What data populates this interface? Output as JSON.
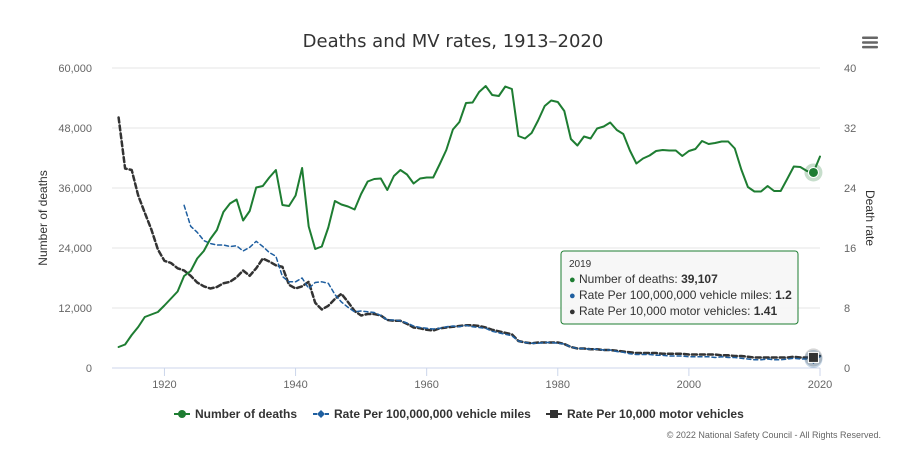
{
  "menu": {
    "icon": "hamburger-menu-icon"
  },
  "credits": "© 2022 National Safety Council - All Rights Reserved.",
  "tooltip": {
    "year": "2019",
    "rows": [
      {
        "label": "Number of deaths: ",
        "value": "39,107",
        "color": "#1e7d32"
      },
      {
        "label": "Rate Per 100,000,000 vehicle miles: ",
        "value": "1.2",
        "color": "#1f5fa0"
      },
      {
        "label": "Rate Per 10,000 motor vehicles: ",
        "value": "1.41",
        "color": "#333333"
      }
    ]
  },
  "chart_data": {
    "type": "line",
    "title": "Deaths and MV rates, 1913–2020",
    "x": {
      "range": [
        1912,
        2020
      ],
      "ticks": [
        1920,
        1940,
        1960,
        1980,
        2000,
        2020
      ],
      "tick_labels": [
        "1920",
        "1940",
        "1960",
        "1980",
        "2000",
        "2020"
      ]
    },
    "y_left": {
      "label": "Number of deaths",
      "range": [
        0,
        60000
      ],
      "ticks": [
        0,
        12000,
        24000,
        36000,
        48000,
        60000
      ],
      "tick_labels": [
        "0",
        "12,000",
        "24,000",
        "36,000",
        "48,000",
        "60,000"
      ]
    },
    "y_right": {
      "label": "Death rate",
      "range": [
        0,
        40
      ],
      "ticks": [
        0,
        8,
        16,
        24,
        32,
        40
      ],
      "tick_labels": [
        "0",
        "8",
        "16",
        "24",
        "32",
        "40"
      ]
    },
    "grid": true,
    "legend_position": "bottom",
    "series": [
      {
        "name": "Number of deaths",
        "axis": "left",
        "color": "#1e7d32",
        "style": "solid",
        "marker": "circle",
        "x": [
          1913,
          1914,
          1915,
          1916,
          1917,
          1918,
          1919,
          1920,
          1921,
          1922,
          1923,
          1924,
          1925,
          1926,
          1927,
          1928,
          1929,
          1930,
          1931,
          1932,
          1933,
          1934,
          1935,
          1936,
          1937,
          1938,
          1939,
          1940,
          1941,
          1942,
          1943,
          1944,
          1945,
          1946,
          1947,
          1948,
          1949,
          1950,
          1951,
          1952,
          1953,
          1954,
          1955,
          1956,
          1957,
          1958,
          1959,
          1960,
          1961,
          1962,
          1963,
          1964,
          1965,
          1966,
          1967,
          1968,
          1969,
          1970,
          1971,
          1972,
          1973,
          1974,
          1975,
          1976,
          1977,
          1978,
          1979,
          1980,
          1981,
          1982,
          1983,
          1984,
          1985,
          1986,
          1987,
          1988,
          1989,
          1990,
          1991,
          1992,
          1993,
          1994,
          1995,
          1996,
          1997,
          1998,
          1999,
          2000,
          2001,
          2002,
          2003,
          2004,
          2005,
          2006,
          2007,
          2008,
          2009,
          2010,
          2011,
          2012,
          2013,
          2014,
          2015,
          2016,
          2017,
          2018,
          2019,
          2020
        ],
        "y": [
          4200,
          4700,
          6600,
          8200,
          10200,
          10700,
          11200,
          12500,
          13900,
          15300,
          18400,
          19400,
          21900,
          23400,
          25800,
          27600,
          31200,
          32900,
          33700,
          29500,
          31400,
          36100,
          36400,
          38100,
          39600,
          32600,
          32400,
          34500,
          40000,
          28300,
          23800,
          24300,
          28100,
          33400,
          32700,
          32300,
          31700,
          34800,
          37300,
          37800,
          37900,
          35600,
          38400,
          39600,
          38700,
          36900,
          37900,
          38100,
          38100,
          40800,
          43600,
          47700,
          49200,
          53000,
          53100,
          55200,
          56400,
          54600,
          54400,
          56300,
          55800,
          46400,
          45900,
          47000,
          49500,
          52400,
          53500,
          53200,
          51400,
          45800,
          44500,
          46300,
          45900,
          47900,
          48300,
          49100,
          47600,
          46800,
          43500,
          40900,
          41900,
          42500,
          43400,
          43600,
          43500,
          43500,
          42400,
          43400,
          43800,
          45400,
          44800,
          45000,
          45300,
          45300,
          43900,
          39700,
          36200,
          35300,
          35300,
          36400,
          35400,
          35400,
          37800,
          40300,
          40200,
          39400,
          39107,
          42300
        ]
      },
      {
        "name": "Rate Per 100,000,000 vehicle miles",
        "axis": "right",
        "color": "#1f5fa0",
        "style": "dashed",
        "marker": "diamond",
        "x": [
          1923,
          1924,
          1925,
          1926,
          1927,
          1928,
          1929,
          1930,
          1931,
          1932,
          1933,
          1934,
          1935,
          1936,
          1937,
          1938,
          1939,
          1940,
          1941,
          1942,
          1943,
          1944,
          1945,
          1946,
          1947,
          1948,
          1949,
          1950,
          1951,
          1952,
          1953,
          1954,
          1955,
          1956,
          1957,
          1958,
          1959,
          1960,
          1961,
          1962,
          1963,
          1964,
          1965,
          1966,
          1967,
          1968,
          1969,
          1970,
          1971,
          1972,
          1973,
          1974,
          1975,
          1976,
          1977,
          1978,
          1979,
          1980,
          1981,
          1982,
          1983,
          1984,
          1985,
          1986,
          1987,
          1988,
          1989,
          1990,
          1991,
          1992,
          1993,
          1994,
          1995,
          1996,
          1997,
          1998,
          1999,
          2000,
          2001,
          2002,
          2003,
          2004,
          2005,
          2006,
          2007,
          2008,
          2009,
          2010,
          2011,
          2012,
          2013,
          2014,
          2015,
          2016,
          2017,
          2018,
          2019,
          2020
        ],
        "y": [
          21.7,
          18.9,
          18.1,
          17.0,
          16.6,
          16.4,
          16.4,
          16.2,
          16.3,
          15.6,
          16.1,
          16.9,
          16.2,
          15.4,
          14.9,
          12.2,
          11.5,
          11.5,
          12.0,
          10.6,
          11.4,
          11.5,
          11.3,
          9.8,
          8.8,
          8.1,
          7.5,
          7.6,
          7.5,
          7.4,
          7.0,
          6.4,
          6.4,
          6.3,
          6.0,
          5.6,
          5.4,
          5.3,
          5.2,
          5.3,
          5.5,
          5.6,
          5.5,
          5.7,
          5.5,
          5.4,
          5.3,
          4.9,
          4.7,
          4.5,
          4.3,
          3.6,
          3.4,
          3.3,
          3.3,
          3.4,
          3.4,
          3.3,
          3.2,
          2.8,
          2.6,
          2.6,
          2.5,
          2.5,
          2.4,
          2.4,
          2.2,
          2.1,
          1.9,
          1.8,
          1.8,
          1.8,
          1.7,
          1.7,
          1.6,
          1.6,
          1.6,
          1.5,
          1.5,
          1.5,
          1.5,
          1.4,
          1.5,
          1.4,
          1.4,
          1.3,
          1.2,
          1.1,
          1.1,
          1.2,
          1.1,
          1.1,
          1.2,
          1.3,
          1.2,
          1.2,
          1.2,
          1.5
        ]
      },
      {
        "name": "Rate Per 10,000 motor vehicles",
        "axis": "right",
        "color": "#333333",
        "style": "dashed",
        "marker": "square",
        "x": [
          1913,
          1914,
          1915,
          1916,
          1917,
          1918,
          1919,
          1920,
          1921,
          1922,
          1923,
          1924,
          1925,
          1926,
          1927,
          1928,
          1929,
          1930,
          1931,
          1932,
          1933,
          1934,
          1935,
          1936,
          1937,
          1938,
          1939,
          1940,
          1941,
          1942,
          1943,
          1944,
          1945,
          1946,
          1947,
          1948,
          1949,
          1950,
          1951,
          1952,
          1953,
          1954,
          1955,
          1956,
          1957,
          1958,
          1959,
          1960,
          1961,
          1962,
          1963,
          1964,
          1965,
          1966,
          1967,
          1968,
          1969,
          1970,
          1971,
          1972,
          1973,
          1974,
          1975,
          1976,
          1977,
          1978,
          1979,
          1980,
          1981,
          1982,
          1983,
          1984,
          1985,
          1986,
          1987,
          1988,
          1989,
          1990,
          1991,
          1992,
          1993,
          1994,
          1995,
          1996,
          1997,
          1998,
          1999,
          2000,
          2001,
          2002,
          2003,
          2004,
          2005,
          2006,
          2007,
          2008,
          2009,
          2010,
          2011,
          2012,
          2013,
          2014,
          2015,
          2016,
          2017,
          2018,
          2019,
          2020
        ],
        "y": [
          33.4,
          26.6,
          26.4,
          23.0,
          20.7,
          18.5,
          15.8,
          14.3,
          14.0,
          13.3,
          13.0,
          12.3,
          11.4,
          10.9,
          10.6,
          10.8,
          11.3,
          11.5,
          12.1,
          13.0,
          12.3,
          13.3,
          14.6,
          14.2,
          13.7,
          13.5,
          11.1,
          10.6,
          10.9,
          11.5,
          8.7,
          7.8,
          8.3,
          9.2,
          9.9,
          8.8,
          7.6,
          7.0,
          7.2,
          7.2,
          7.0,
          6.4,
          6.3,
          6.3,
          5.9,
          5.4,
          5.3,
          5.1,
          5.0,
          5.3,
          5.4,
          5.5,
          5.6,
          5.7,
          5.7,
          5.6,
          5.4,
          5.1,
          4.9,
          4.7,
          4.5,
          3.6,
          3.4,
          3.3,
          3.4,
          3.4,
          3.4,
          3.4,
          3.2,
          2.8,
          2.6,
          2.6,
          2.5,
          2.5,
          2.4,
          2.4,
          2.3,
          2.2,
          2.1,
          2.0,
          2.0,
          2.0,
          2.0,
          1.9,
          1.9,
          1.9,
          1.9,
          1.8,
          1.8,
          1.8,
          1.8,
          1.8,
          1.7,
          1.7,
          1.6,
          1.6,
          1.5,
          1.4,
          1.4,
          1.4,
          1.4,
          1.4,
          1.4,
          1.5,
          1.4,
          1.4,
          1.41,
          1.6
        ]
      }
    ]
  }
}
